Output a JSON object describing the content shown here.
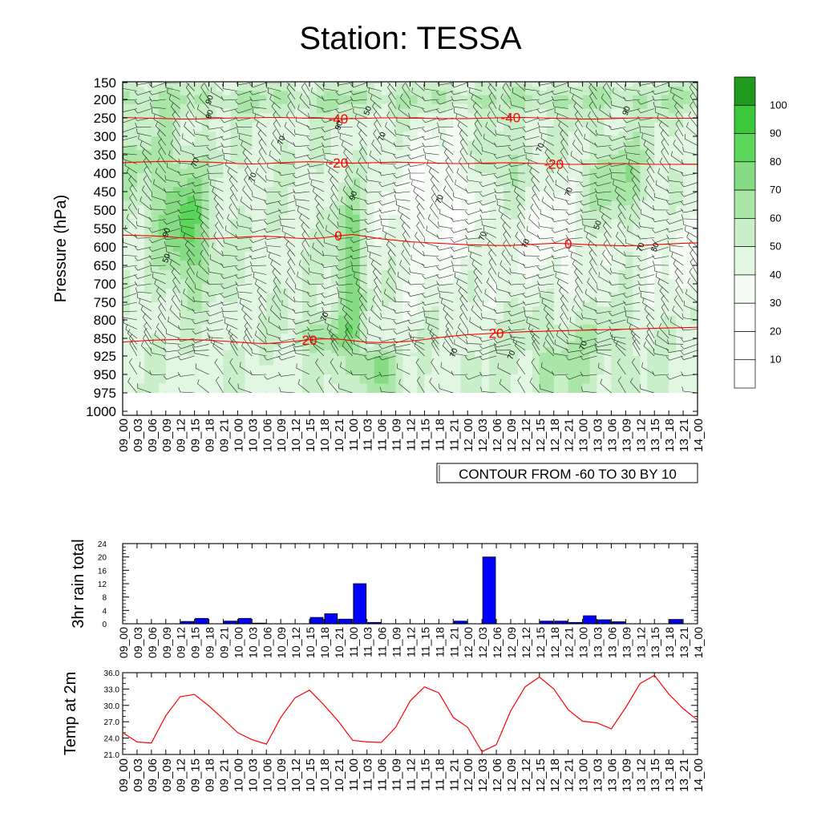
{
  "page": {
    "title": "Station: TESSA"
  },
  "time_labels": [
    "09_00",
    "09_03",
    "09_06",
    "09_09",
    "09_12",
    "09_15",
    "09_18",
    "09_21",
    "10_00",
    "10_03",
    "10_06",
    "10_09",
    "10_12",
    "10_15",
    "10_18",
    "10_21",
    "11_00",
    "11_03",
    "11_06",
    "11_09",
    "11_12",
    "11_15",
    "11_18",
    "11_21",
    "12_00",
    "12_03",
    "12_06",
    "12_09",
    "12_12",
    "12_15",
    "12_18",
    "12_21",
    "13_00",
    "13_03",
    "13_06",
    "13_09",
    "13_12",
    "13_15",
    "13_18",
    "13_21",
    "14_00"
  ],
  "colors": {
    "rh_levels": [
      "#ffffff",
      "#ffffff",
      "#f4fcf4",
      "#e2f7e2",
      "#c8efc8",
      "#a9e6a8",
      "#86dc84",
      "#5cd65a",
      "#3bc83a",
      "#1f9a1f"
    ],
    "temp_contour": "#ff0000",
    "rain_bar": "#0000ff",
    "temp_line": "#ff0000"
  },
  "chart_data": [
    {
      "type": "heatmap",
      "name": "time-height cross section (relative humidity shading, temperature contours, wind barbs)",
      "title": "Station: TESSA",
      "ylabel": "Pressure (hPa)",
      "y_ticks": [
        150,
        200,
        250,
        300,
        350,
        400,
        450,
        500,
        550,
        600,
        650,
        700,
        750,
        800,
        850,
        925,
        950,
        975,
        1000
      ],
      "y_order": "reversed",
      "colorbar": {
        "labels": [
          "10",
          "20",
          "30",
          "40",
          "50",
          "60",
          "70",
          "80",
          "90",
          "100"
        ]
      },
      "info_label": "CONTOUR FROM -60 TO 30 BY 10",
      "temperature_contours": [
        {
          "label": "-40",
          "levels_hpa": [
            249,
            250,
            251,
            252,
            253,
            253,
            252,
            251,
            250,
            250,
            249,
            249,
            250,
            251,
            251,
            252,
            252,
            251,
            250,
            250,
            251,
            251,
            252,
            252,
            252,
            251,
            250,
            249,
            249,
            250,
            251,
            252,
            253,
            253,
            252,
            251,
            250,
            250,
            251,
            251,
            251
          ]
        },
        {
          "label": "-20",
          "levels_hpa": [
            372,
            370,
            369,
            368,
            368,
            369,
            370,
            372,
            374,
            375,
            374,
            372,
            370,
            369,
            370,
            372,
            373,
            372,
            371,
            370,
            371,
            372,
            373,
            374,
            374,
            373,
            372,
            372,
            373,
            374,
            375,
            376,
            376,
            375,
            374,
            374,
            375,
            376,
            376,
            376,
            376
          ]
        },
        {
          "label": "0",
          "levels_hpa": [
            568,
            569,
            570,
            572,
            575,
            577,
            578,
            576,
            574,
            572,
            571,
            573,
            576,
            578,
            575,
            570,
            566,
            572,
            578,
            582,
            586,
            588,
            590,
            592,
            594,
            595,
            596,
            596,
            594,
            592,
            590,
            591,
            593,
            595,
            596,
            597,
            596,
            594,
            592,
            590,
            589
          ]
        },
        {
          "label": "20",
          "levels_hpa": [
            866,
            862,
            858,
            856,
            855,
            856,
            858,
            862,
            866,
            870,
            872,
            868,
            862,
            856,
            852,
            853,
            860,
            866,
            868,
            866,
            862,
            855,
            848,
            844,
            840,
            838,
            836,
            834,
            832,
            831,
            830,
            829,
            828,
            827,
            826,
            825,
            824,
            823,
            822,
            821,
            820
          ]
        }
      ],
      "rh_labels": [
        "30",
        "50",
        "70",
        "90"
      ]
    },
    {
      "type": "bar",
      "ylabel": "3hr rain total",
      "ylim": [
        0,
        24
      ],
      "y_ticks": [
        0,
        4,
        8,
        12,
        16,
        20,
        24
      ],
      "categories_ref": "time_labels",
      "values": [
        0,
        0,
        0,
        0,
        0.7,
        1.6,
        0,
        0.8,
        1.6,
        0.2,
        0,
        0,
        0,
        1.9,
        3.0,
        1.4,
        12.0,
        0.4,
        0,
        0,
        0,
        0,
        0,
        0.8,
        0,
        20.0,
        0,
        0,
        0,
        0.8,
        0.8,
        0.4,
        2.4,
        1.2,
        0.6,
        0,
        0,
        0,
        1.3,
        0,
        0
      ]
    },
    {
      "type": "line",
      "ylabel": "Temp at 2m",
      "ylim": [
        21.0,
        36.0
      ],
      "y_ticks": [
        "21.0",
        "24.0",
        "27.0",
        "30.0",
        "33.0",
        "36.0"
      ],
      "categories_ref": "time_labels",
      "values": [
        25.0,
        23.3,
        23.1,
        28.1,
        31.6,
        32.0,
        29.9,
        27.5,
        25.0,
        23.7,
        22.9,
        27.8,
        31.4,
        32.8,
        30.1,
        27.1,
        23.6,
        23.3,
        23.2,
        26.0,
        30.8,
        33.4,
        32.3,
        27.8,
        26.0,
        21.5,
        22.8,
        29.0,
        33.4,
        35.2,
        33.0,
        29.2,
        27.1,
        26.8,
        25.7,
        29.6,
        34.0,
        35.5,
        32.1,
        29.4,
        27.3
      ]
    }
  ]
}
